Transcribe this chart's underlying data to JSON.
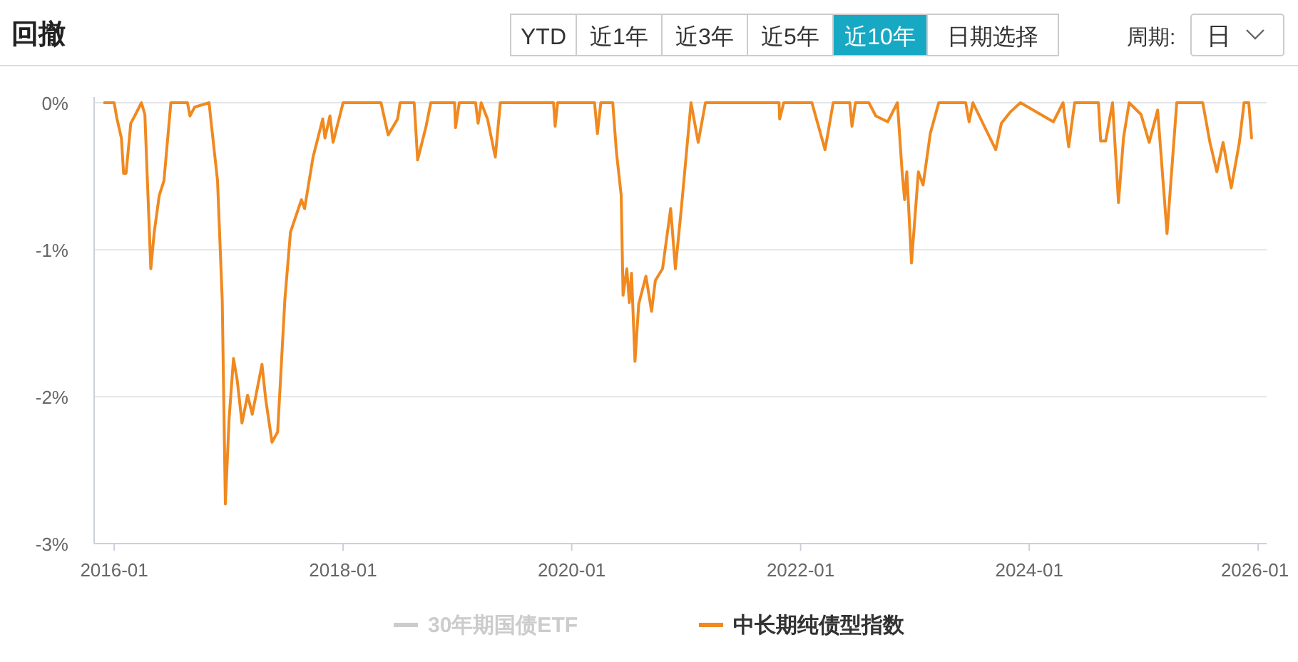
{
  "chart_data": {
    "type": "line",
    "title": "回撤",
    "annotations": [
      "YTD",
      "近1年",
      "近3年",
      "近5年",
      "近10年",
      "日期选择",
      "周期:",
      "日"
    ],
    "xlim": [
      "2015-10-29",
      "2026-01-28"
    ],
    "xticks": [
      {
        "value": "2016-01-01",
        "label": "2016-01"
      },
      {
        "value": "2018-01-01",
        "label": "2018-01"
      },
      {
        "value": "2020-01-01",
        "label": "2020-01"
      },
      {
        "value": "2022-01-01",
        "label": "2022-01"
      },
      {
        "value": "2024-01-01",
        "label": "2024-01"
      },
      {
        "value": "2026-01-01",
        "label": "2026-01"
      }
    ],
    "ylim": [
      -3,
      0
    ],
    "yticks": [
      {
        "value": -3,
        "label": "-3%"
      },
      {
        "value": -2,
        "label": "-2%"
      },
      {
        "value": -1,
        "label": "-1%"
      },
      {
        "value": 0,
        "label": "0%"
      }
    ],
    "grid": "y",
    "legend": "bottom",
    "marker": "none",
    "line_style": "solid",
    "series": [
      {
        "name": "30年期国债ETF",
        "color": "#cccccc"
      },
      {
        "name": "中长期纯债型指数",
        "color": "#f0891f",
        "x": [
          "2015-12-01",
          "2016-01-01",
          "2016-01-09",
          "2016-01-24",
          "2016-01-31",
          "2016-02-08",
          "2016-02-23",
          "2016-03-09",
          "2016-03-28",
          "2016-04-08",
          "2016-04-15",
          "2016-04-27",
          "2016-05-08",
          "2016-05-24",
          "2016-06-08",
          "2016-06-30",
          "2016-08-22",
          "2016-08-30",
          "2016-09-14",
          "2016-10-30",
          "2016-11-06",
          "2016-11-26",
          "2016-12-11",
          "2016-12-21",
          "2017-01-02",
          "2017-01-16",
          "2017-01-28",
          "2017-02-12",
          "2017-03-02",
          "2017-03-17",
          "2017-04-17",
          "2017-04-29",
          "2017-05-19",
          "2017-06-06",
          "2017-06-29",
          "2017-07-17",
          "2017-08-21",
          "2017-08-31",
          "2017-09-27",
          "2017-10-28",
          "2017-11-04",
          "2017-11-20",
          "2017-11-30",
          "2018-01-01",
          "2018-05-02",
          "2018-05-25",
          "2018-06-24",
          "2018-07-02",
          "2018-08-16",
          "2018-08-27",
          "2018-09-23",
          "2018-10-08",
          "2018-12-23",
          "2018-12-26",
          "2019-01-07",
          "2019-02-28",
          "2019-03-08",
          "2019-03-18",
          "2019-04-07",
          "2019-05-02",
          "2019-05-18",
          "2019-11-04",
          "2019-11-09",
          "2019-11-17",
          "2020-03-14",
          "2020-03-23",
          "2020-04-03",
          "2020-05-11",
          "2020-05-23",
          "2020-06-07",
          "2020-06-13",
          "2020-06-25",
          "2020-07-03",
          "2020-07-10",
          "2020-07-21",
          "2020-08-02",
          "2020-08-25",
          "2020-09-12",
          "2020-09-24",
          "2020-10-17",
          "2020-11-12",
          "2020-11-27",
          "2020-12-16",
          "2021-01-16",
          "2021-02-08",
          "2021-03-03",
          "2021-10-24",
          "2021-10-26",
          "2021-11-08",
          "2022-02-06",
          "2022-03-20",
          "2022-04-15",
          "2022-06-07",
          "2022-06-14",
          "2022-06-25",
          "2022-08-07",
          "2022-08-29",
          "2022-10-06",
          "2022-11-06",
          "2022-11-21",
          "2022-11-29",
          "2022-12-06",
          "2022-12-21",
          "2023-01-12",
          "2023-01-27",
          "2023-02-19",
          "2023-03-18",
          "2023-06-12",
          "2023-06-23",
          "2023-07-05",
          "2023-09-16",
          "2023-10-04",
          "2023-11-03",
          "2023-12-04",
          "2024-03-18",
          "2024-04-18",
          "2024-05-06",
          "2024-05-25",
          "2024-08-09",
          "2024-08-16",
          "2024-09-01",
          "2024-09-23",
          "2024-10-12",
          "2024-10-28",
          "2024-11-15",
          "2024-12-23",
          "2025-01-18",
          "2025-02-14",
          "2025-03-16",
          "2025-04-16",
          "2025-07-08",
          "2025-07-31",
          "2025-08-22",
          "2025-09-11",
          "2025-10-07",
          "2025-11-02",
          "2025-11-17",
          "2025-12-02",
          "2025-12-11"
        ],
        "values": [
          0,
          0,
          -0.1,
          -0.24,
          -0.48,
          -0.48,
          -0.14,
          -0.08,
          0,
          -0.08,
          -0.47,
          -1.13,
          -0.88,
          -0.63,
          -0.53,
          0,
          0,
          -0.09,
          -0.03,
          0,
          -0.14,
          -0.53,
          -1.34,
          -2.73,
          -2.15,
          -1.74,
          -1.89,
          -2.18,
          -1.99,
          -2.12,
          -1.78,
          -2.02,
          -2.31,
          -2.24,
          -1.34,
          -0.88,
          -0.66,
          -0.72,
          -0.37,
          -0.11,
          -0.24,
          -0.09,
          -0.27,
          0,
          0,
          -0.22,
          -0.11,
          0,
          0,
          -0.39,
          -0.16,
          0,
          0,
          -0.17,
          0,
          0,
          -0.14,
          0,
          -0.11,
          -0.37,
          0,
          0,
          -0.16,
          0,
          0,
          -0.21,
          0,
          0,
          -0.34,
          -0.63,
          -1.31,
          -1.13,
          -1.36,
          -1.16,
          -1.76,
          -1.37,
          -1.18,
          -1.42,
          -1.21,
          -1.13,
          -0.72,
          -1.13,
          -0.72,
          0,
          -0.27,
          0,
          0,
          -0.11,
          0,
          0,
          -0.32,
          0,
          0,
          -0.16,
          0,
          0,
          -0.09,
          -0.13,
          0,
          -0.47,
          -0.66,
          -0.47,
          -1.09,
          -0.47,
          -0.56,
          -0.21,
          0,
          0,
          -0.13,
          0,
          -0.32,
          -0.14,
          -0.06,
          0,
          -0.13,
          0,
          -0.3,
          0,
          0,
          -0.26,
          -0.26,
          0,
          -0.68,
          -0.24,
          0,
          -0.08,
          -0.27,
          -0.05,
          -0.89,
          0,
          0,
          -0.27,
          -0.47,
          -0.27,
          -0.58,
          -0.27,
          0,
          0,
          -0.24
        ]
      }
    ]
  }
}
